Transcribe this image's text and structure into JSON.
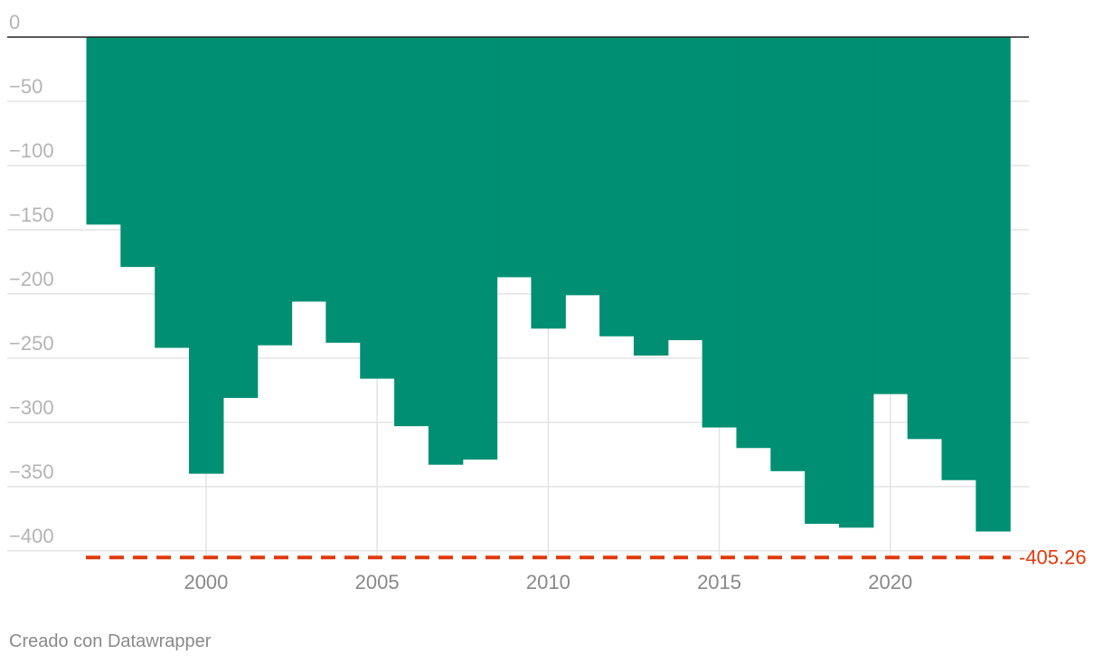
{
  "chart_data": {
    "type": "area",
    "step": true,
    "x_start": 1997,
    "x_end": 2023,
    "x": [
      1997,
      1998,
      1999,
      2000,
      2001,
      2002,
      2003,
      2004,
      2005,
      2006,
      2007,
      2008,
      2009,
      2010,
      2011,
      2012,
      2013,
      2014,
      2015,
      2016,
      2017,
      2018,
      2019,
      2020,
      2021,
      2022,
      2023
    ],
    "values": [
      -146,
      -179,
      -242,
      -340,
      -281,
      -240,
      -206,
      -238,
      -266,
      -303,
      -333,
      -329,
      -187,
      -227,
      -201,
      -233,
      -248,
      -236,
      -304,
      -320,
      -338,
      -379,
      -382,
      -278,
      -313,
      -345,
      -385
    ],
    "ylim": [
      -405.26,
      0
    ],
    "yticks": [
      0,
      -50,
      -100,
      -150,
      -200,
      -250,
      -300,
      -350,
      -400
    ],
    "ytick_labels": [
      "0",
      "−50",
      "−100",
      "−150",
      "−200",
      "−250",
      "−300",
      "−350",
      "−400"
    ],
    "xticks": [
      2000,
      2005,
      2010,
      2015,
      2020
    ],
    "xtick_labels": [
      "2000",
      "2005",
      "2010",
      "2015",
      "2020"
    ],
    "grid": true,
    "fill_color": "#008f73",
    "reference_line": {
      "value": -405.26,
      "label": "-405.26",
      "color": "#e0390a",
      "style": "dashed"
    }
  },
  "credit": "Creado con Datawrapper"
}
